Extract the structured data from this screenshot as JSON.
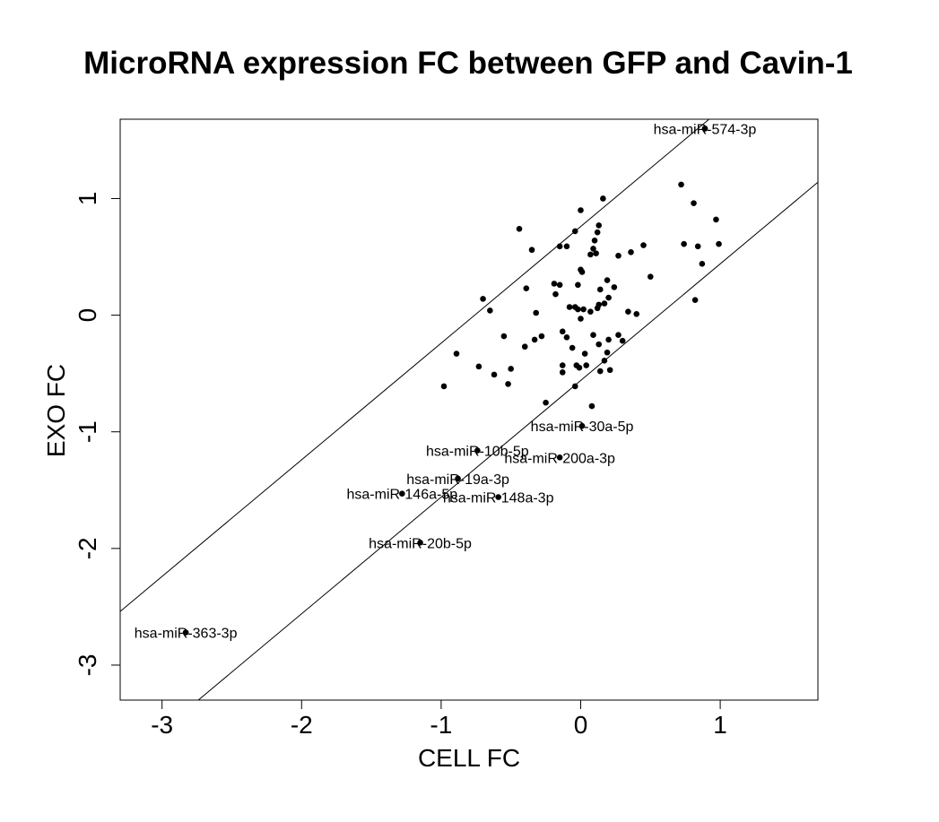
{
  "chart_data": {
    "type": "scatter",
    "title": "MicroRNA expression FC between GFP and Cavin-1",
    "xlabel": "CELL FC",
    "ylabel": "EXO FC",
    "xlim": [
      -3.3,
      1.7
    ],
    "ylim": [
      -3.3,
      1.68
    ],
    "x_ticks": [
      -3,
      -2,
      -1,
      0,
      1
    ],
    "x_tick_labels": [
      "-3",
      "-2",
      "-1",
      "0",
      "1"
    ],
    "y_ticks": [
      -3,
      -2,
      -1,
      0,
      1
    ],
    "y_tick_labels": [
      "-3",
      "-2",
      "-1",
      "0",
      "1"
    ],
    "grid": false,
    "reference_lines": [
      {
        "slope": 1,
        "intercept": 0.76
      },
      {
        "slope": 1,
        "intercept": -0.56
      }
    ],
    "points": [
      {
        "x": 0.89,
        "y": 1.6
      },
      {
        "x": 0.72,
        "y": 1.12
      },
      {
        "x": 0.81,
        "y": 0.96
      },
      {
        "x": 0.97,
        "y": 0.82
      },
      {
        "x": 0.74,
        "y": 0.61
      },
      {
        "x": 0.84,
        "y": 0.59
      },
      {
        "x": 0.99,
        "y": 0.61
      },
      {
        "x": 0.87,
        "y": 0.44
      },
      {
        "x": 0.82,
        "y": 0.13
      },
      {
        "x": 0.5,
        "y": 0.33
      },
      {
        "x": 0.45,
        "y": 0.6
      },
      {
        "x": 0.36,
        "y": 0.54
      },
      {
        "x": 0.27,
        "y": 0.51
      },
      {
        "x": 0.4,
        "y": 0.01
      },
      {
        "x": 0.34,
        "y": 0.03
      },
      {
        "x": 0.3,
        "y": -0.22
      },
      {
        "x": 0.27,
        "y": -0.17
      },
      {
        "x": 0.16,
        "y": 1.0
      },
      {
        "x": 0.0,
        "y": 0.9
      },
      {
        "x": 0.13,
        "y": 0.77
      },
      {
        "x": 0.12,
        "y": 0.71
      },
      {
        "x": 0.1,
        "y": 0.64
      },
      {
        "x": 0.09,
        "y": 0.57
      },
      {
        "x": 0.07,
        "y": 0.52
      },
      {
        "x": 0.11,
        "y": 0.53
      },
      {
        "x": -0.04,
        "y": 0.72
      },
      {
        "x": -0.1,
        "y": 0.59
      },
      {
        "x": -0.15,
        "y": 0.59
      },
      {
        "x": 0.0,
        "y": 0.39
      },
      {
        "x": 0.01,
        "y": 0.37
      },
      {
        "x": 0.19,
        "y": 0.3
      },
      {
        "x": 0.24,
        "y": 0.24
      },
      {
        "x": -0.02,
        "y": 0.26
      },
      {
        "x": -0.19,
        "y": 0.27
      },
      {
        "x": -0.15,
        "y": 0.26
      },
      {
        "x": 0.14,
        "y": 0.22
      },
      {
        "x": 0.2,
        "y": 0.15
      },
      {
        "x": 0.17,
        "y": 0.1
      },
      {
        "x": 0.13,
        "y": 0.09
      },
      {
        "x": 0.02,
        "y": 0.05
      },
      {
        "x": 0.12,
        "y": 0.06
      },
      {
        "x": 0.07,
        "y": 0.03
      },
      {
        "x": -0.02,
        "y": 0.05
      },
      {
        "x": -0.04,
        "y": 0.07
      },
      {
        "x": -0.08,
        "y": 0.07
      },
      {
        "x": -0.18,
        "y": 0.18
      },
      {
        "x": -0.35,
        "y": 0.56
      },
      {
        "x": -0.44,
        "y": 0.74
      },
      {
        "x": -0.39,
        "y": 0.23
      },
      {
        "x": -0.32,
        "y": 0.02
      },
      {
        "x": -0.28,
        "y": -0.18
      },
      {
        "x": -0.33,
        "y": -0.21
      },
      {
        "x": -0.4,
        "y": -0.27
      },
      {
        "x": 0.0,
        "y": -0.03
      },
      {
        "x": -0.1,
        "y": -0.19
      },
      {
        "x": -0.13,
        "y": -0.14
      },
      {
        "x": 0.2,
        "y": -0.21
      },
      {
        "x": 0.19,
        "y": -0.32
      },
      {
        "x": 0.17,
        "y": -0.39
      },
      {
        "x": 0.09,
        "y": -0.17
      },
      {
        "x": 0.13,
        "y": -0.25
      },
      {
        "x": -0.06,
        "y": -0.28
      },
      {
        "x": -0.03,
        "y": -0.43
      },
      {
        "x": 0.03,
        "y": -0.33
      },
      {
        "x": 0.04,
        "y": -0.43
      },
      {
        "x": -0.01,
        "y": -0.45
      },
      {
        "x": -0.13,
        "y": -0.43
      },
      {
        "x": -0.13,
        "y": -0.49
      },
      {
        "x": 0.14,
        "y": -0.48
      },
      {
        "x": 0.21,
        "y": -0.47
      },
      {
        "x": -0.04,
        "y": -0.61
      },
      {
        "x": -0.25,
        "y": -0.75
      },
      {
        "x": 0.08,
        "y": -0.78
      },
      {
        "x": -0.52,
        "y": -0.59
      },
      {
        "x": -0.5,
        "y": -0.46
      },
      {
        "x": -0.55,
        "y": -0.18
      },
      {
        "x": -0.62,
        "y": -0.51
      },
      {
        "x": -0.73,
        "y": -0.44
      },
      {
        "x": -0.65,
        "y": 0.04
      },
      {
        "x": -0.7,
        "y": 0.14
      },
      {
        "x": -0.89,
        "y": -0.33
      },
      {
        "x": -0.98,
        "y": -0.61
      }
    ],
    "labeled_points": [
      {
        "label": "hsa-miR-574-3p",
        "x": 0.89,
        "y": 1.6
      },
      {
        "label": "hsa-miR-30a-5p",
        "x": 0.01,
        "y": -0.95
      },
      {
        "label": "hsa-miR-10b-5p",
        "x": -0.74,
        "y": -1.16
      },
      {
        "label": "hsa-miR-200a-3p",
        "x": -0.15,
        "y": -1.22
      },
      {
        "label": "hsa-miR-19a-3p",
        "x": -0.88,
        "y": -1.4
      },
      {
        "label": "hsa-miR-146a-5p",
        "x": -1.28,
        "y": -1.53
      },
      {
        "label": "hsa-miR-148a-3p",
        "x": -0.59,
        "y": -1.56
      },
      {
        "label": "hsa-miR-20b-5p",
        "x": -1.15,
        "y": -1.95
      },
      {
        "label": "hsa-miR-363-3p",
        "x": -2.83,
        "y": -2.72
      }
    ],
    "point_color": "#000000"
  }
}
